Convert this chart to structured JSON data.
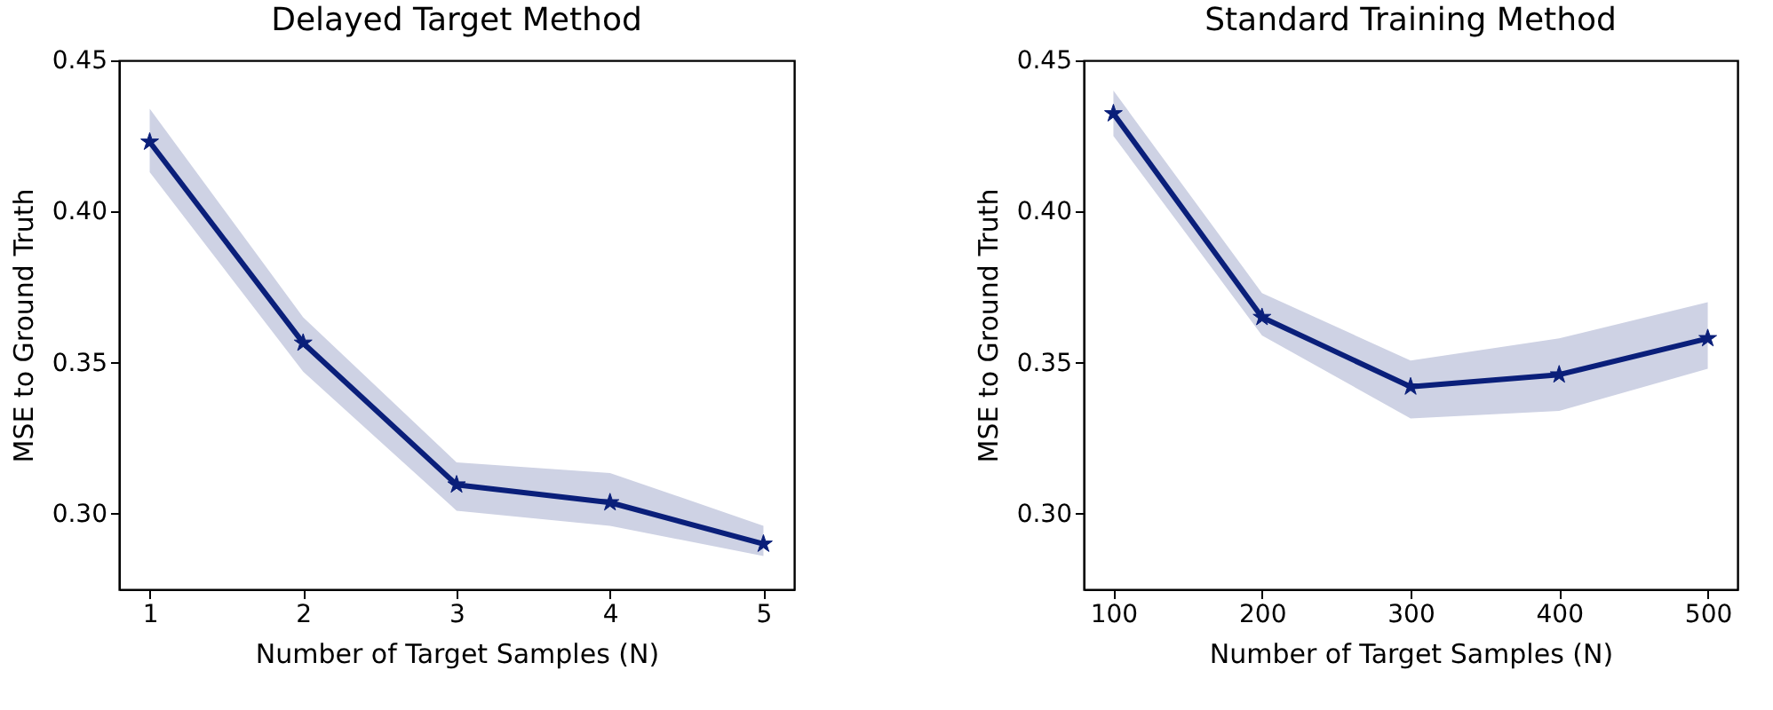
{
  "chart_data": [
    {
      "type": "line",
      "title": "Delayed Target Method",
      "xlabel": "Number of Target Samples (N)",
      "ylabel": "MSE to Ground Truth",
      "x": [
        1,
        2,
        3,
        4,
        5
      ],
      "xlim": [
        0.8,
        5.2
      ],
      "xticks": [
        1,
        2,
        3,
        4,
        5
      ],
      "ylim": [
        0.275,
        0.45
      ],
      "yticks": [
        {
          "value": 0.3,
          "label": "0.30"
        },
        {
          "value": 0.35,
          "label": "0.35"
        },
        {
          "value": 0.4,
          "label": "0.40"
        },
        {
          "value": 0.45,
          "label": "0.45"
        }
      ],
      "grid": false,
      "legend": false,
      "marker": "star",
      "line_style": "solid",
      "series": [
        {
          "color": "#0a1f7a",
          "values": [
            0.423,
            0.3565,
            0.3096,
            0.3037,
            0.29
          ],
          "lower": [
            0.413,
            0.347,
            0.301,
            0.296,
            0.286
          ],
          "upper": [
            0.434,
            0.365,
            0.317,
            0.3135,
            0.296
          ]
        }
      ]
    },
    {
      "type": "line",
      "title": "Standard Training Method",
      "xlabel": "Number of Target Samples (N)",
      "ylabel": "MSE to Ground Truth",
      "x": [
        100,
        200,
        300,
        400,
        500
      ],
      "xlim": [
        80,
        520
      ],
      "xticks": [
        100,
        200,
        300,
        400,
        500
      ],
      "ylim": [
        0.275,
        0.45
      ],
      "yticks": [
        {
          "value": 0.3,
          "label": "0.30"
        },
        {
          "value": 0.35,
          "label": "0.35"
        },
        {
          "value": 0.4,
          "label": "0.40"
        },
        {
          "value": 0.45,
          "label": "0.45"
        }
      ],
      "grid": false,
      "legend": false,
      "marker": "star",
      "line_style": "solid",
      "series": [
        {
          "color": "#0a1f7a",
          "values": [
            0.4324,
            0.365,
            0.342,
            0.346,
            0.358
          ],
          "lower": [
            0.425,
            0.359,
            0.3315,
            0.334,
            0.348
          ],
          "upper": [
            0.44,
            0.373,
            0.3507,
            0.358,
            0.37
          ]
        }
      ]
    }
  ]
}
